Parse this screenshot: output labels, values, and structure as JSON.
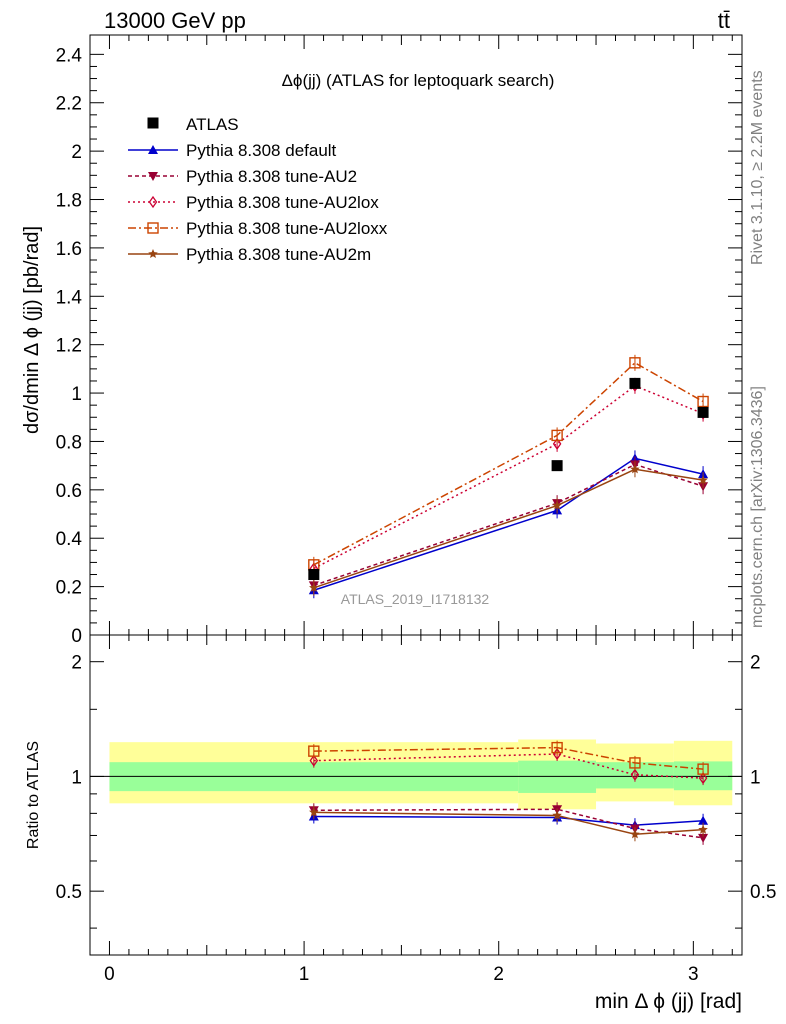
{
  "header": {
    "energy_label": "13000 GeV pp",
    "process_label": "tt̄"
  },
  "side_labels": {
    "rivet": "Rivet 3.1.10, ≥ 2.2M events",
    "mcplots": "mcplots.cern.ch [arXiv:1306.3436]"
  },
  "chart_data": {
    "type": "line",
    "title": "Δϕ(jj) (ATLAS for leptoquark search)",
    "analysis_tag": "ATLAS_2019_I1718132",
    "xlabel": "min Δ ϕ (jj) [rad]",
    "ylabel": "dσ/dmin Δ ϕ (jj) [pb/rad]",
    "ratio_ylabel": "Ratio to ATLAS",
    "xlim": [
      -0.1,
      3.25
    ],
    "ylim": [
      0,
      2.48
    ],
    "ratio_ylim": [
      0.34,
      2.35
    ],
    "x_ticks": [
      "0",
      "1",
      "2",
      "3"
    ],
    "y_ticks": [
      "0",
      "0.2",
      "0.4",
      "0.6",
      "0.8",
      "1",
      "1.2",
      "1.4",
      "1.6",
      "1.8",
      "2",
      "2.2",
      "2.4"
    ],
    "ratio_ticks": [
      "0.5",
      "1",
      "2"
    ],
    "legend_position": "top-left",
    "x": [
      1.05,
      2.3,
      2.7,
      3.05
    ],
    "bin_edges": [
      0,
      2.1,
      2.5,
      2.9,
      3.2
    ],
    "data": {
      "name": "ATLAS",
      "values": [
        0.25,
        0.7,
        1.04,
        0.92
      ]
    },
    "uncertainty_bands": {
      "inner": [
        [
          0.915,
          1.09
        ],
        [
          0.905,
          1.1
        ],
        [
          0.93,
          1.09
        ],
        [
          0.92,
          1.095
        ]
      ],
      "outer": [
        [
          0.85,
          1.23
        ],
        [
          0.82,
          1.25
        ],
        [
          0.86,
          1.22
        ],
        [
          0.84,
          1.24
        ]
      ]
    },
    "series": [
      {
        "name": "Pythia 8.308 default",
        "values": [
          0.185,
          0.515,
          0.73,
          0.665
        ],
        "ratio": [
          0.785,
          0.78,
          0.745,
          0.765
        ],
        "color": "#0000cc",
        "marker": "triangle-up",
        "dash": ""
      },
      {
        "name": "Pythia 8.308 tune-AU2",
        "values": [
          0.205,
          0.545,
          0.705,
          0.615
        ],
        "ratio": [
          0.815,
          0.82,
          0.73,
          0.69
        ],
        "color": "#990033",
        "marker": "triangle-down",
        "dash": "4,3"
      },
      {
        "name": "Pythia 8.308 tune-AU2lox",
        "values": [
          0.275,
          0.79,
          1.03,
          0.915
        ],
        "ratio": [
          1.1,
          1.145,
          1.01,
          0.99
        ],
        "color": "#cc0033",
        "marker": "diamond-open",
        "dash": "2,3"
      },
      {
        "name": "Pythia 8.308 tune-AU2loxx",
        "values": [
          0.29,
          0.825,
          1.125,
          0.965
        ],
        "ratio": [
          1.165,
          1.19,
          1.085,
          1.045
        ],
        "color": "#cc4400",
        "marker": "square-open",
        "dash": "8,3,2,3"
      },
      {
        "name": "Pythia 8.308 tune-AU2m",
        "values": [
          0.195,
          0.535,
          0.685,
          0.64
        ],
        "ratio": [
          0.805,
          0.79,
          0.705,
          0.725
        ],
        "color": "#994411",
        "marker": "star",
        "dash": ""
      }
    ],
    "colors": {
      "data": "#000000",
      "band_inner": "#99ff99",
      "band_outer": "#ffff99"
    }
  }
}
